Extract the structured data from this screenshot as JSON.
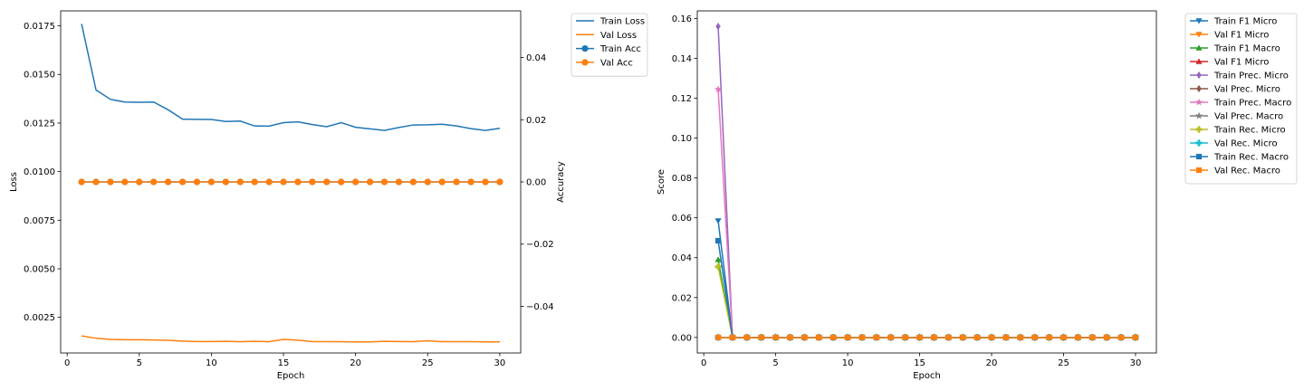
{
  "chart_data": [
    {
      "type": "line",
      "xlabel": "Epoch",
      "ylabel": "Loss",
      "y2label": "Accuracy",
      "xlim": [
        -0.45,
        31.45
      ],
      "ylim": [
        0.00067,
        0.01827
      ],
      "y2lim": [
        -0.055,
        0.055
      ],
      "xticks": [
        0,
        5,
        10,
        15,
        20,
        25,
        30
      ],
      "xtick_labels": [
        "0",
        "5",
        "10",
        "15",
        "20",
        "25",
        "30"
      ],
      "yticks": [
        0.0025,
        0.005,
        0.0075,
        0.01,
        0.0125,
        0.015,
        0.0175
      ],
      "ytick_labels": [
        "0.0025",
        "0.0050",
        "0.0075",
        "0.0100",
        "0.0125",
        "0.0150",
        "0.0175"
      ],
      "y2ticks": [
        -0.04,
        -0.02,
        0,
        0.02,
        0.04
      ],
      "y2tick_labels": [
        "−0.04",
        "−0.02",
        "0.00",
        "0.02",
        "0.04"
      ],
      "grid": false,
      "legend_position": "outside-top-right",
      "x": [
        1,
        2,
        3,
        4,
        5,
        6,
        7,
        8,
        9,
        10,
        11,
        12,
        13,
        14,
        15,
        16,
        17,
        18,
        19,
        20,
        21,
        22,
        23,
        24,
        25,
        26,
        27,
        28,
        29,
        30
      ],
      "series": [
        {
          "name": "Train Loss",
          "axis": "left",
          "color": "#1f77b4",
          "marker": "none",
          "values": [
            0.0176,
            0.0142,
            0.01372,
            0.01358,
            0.01357,
            0.01358,
            0.01318,
            0.0127,
            0.01269,
            0.01268,
            0.01258,
            0.0126,
            0.01235,
            0.01234,
            0.01252,
            0.01256,
            0.01242,
            0.01231,
            0.01252,
            0.01228,
            0.0122,
            0.01212,
            0.01227,
            0.0124,
            0.01241,
            0.01244,
            0.01235,
            0.01221,
            0.01212,
            0.01223
          ]
        },
        {
          "name": "Val Loss",
          "axis": "left",
          "color": "#ff7f0e",
          "marker": "none",
          "values": [
            0.00155,
            0.00143,
            0.00137,
            0.00135,
            0.00135,
            0.00134,
            0.00132,
            0.00128,
            0.00126,
            0.00126,
            0.00127,
            0.00125,
            0.00127,
            0.00125,
            0.00137,
            0.00133,
            0.00126,
            0.00125,
            0.00125,
            0.00124,
            0.00124,
            0.00127,
            0.00126,
            0.00125,
            0.0013,
            0.00125,
            0.00125,
            0.00125,
            0.00124,
            0.00124
          ]
        },
        {
          "name": "Train Acc",
          "axis": "right",
          "color": "#1f77b4",
          "marker": "circle",
          "values": [
            0,
            0,
            0,
            0,
            0,
            0,
            0,
            0,
            0,
            0,
            0,
            0,
            0,
            0,
            0,
            0,
            0,
            0,
            0,
            0,
            0,
            0,
            0,
            0,
            0,
            0,
            0,
            0,
            0,
            0
          ]
        },
        {
          "name": "Val Acc",
          "axis": "right",
          "color": "#ff7f0e",
          "marker": "circle",
          "values": [
            0,
            0,
            0,
            0,
            0,
            0,
            0,
            0,
            0,
            0,
            0,
            0,
            0,
            0,
            0,
            0,
            0,
            0,
            0,
            0,
            0,
            0,
            0,
            0,
            0,
            0,
            0,
            0,
            0,
            0
          ]
        }
      ]
    },
    {
      "type": "line",
      "xlabel": "Epoch",
      "ylabel": "Score",
      "xlim": [
        -0.45,
        31.45
      ],
      "ylim": [
        -0.0078,
        0.1638
      ],
      "xticks": [
        0,
        5,
        10,
        15,
        20,
        25,
        30
      ],
      "xtick_labels": [
        "0",
        "5",
        "10",
        "15",
        "20",
        "25",
        "30"
      ],
      "yticks": [
        0,
        0.02,
        0.04,
        0.06,
        0.08,
        0.1,
        0.12,
        0.14,
        0.16
      ],
      "ytick_labels": [
        "0.00",
        "0.02",
        "0.04",
        "0.06",
        "0.08",
        "0.10",
        "0.12",
        "0.14",
        "0.16"
      ],
      "grid": false,
      "legend_position": "outside-top-right",
      "x": [
        1,
        2,
        3,
        4,
        5,
        6,
        7,
        8,
        9,
        10,
        11,
        12,
        13,
        14,
        15,
        16,
        17,
        18,
        19,
        20,
        21,
        22,
        23,
        24,
        25,
        26,
        27,
        28,
        29,
        30
      ],
      "series": [
        {
          "name": "Train F1 Micro",
          "color": "#1f77b4",
          "marker": "triangle-down",
          "values": [
            0.0585,
            0,
            0,
            0,
            0,
            0,
            0,
            0,
            0,
            0,
            0,
            0,
            0,
            0,
            0,
            0,
            0,
            0,
            0,
            0,
            0,
            0,
            0,
            0,
            0,
            0,
            0,
            0,
            0,
            0
          ]
        },
        {
          "name": "Val F1 Micro",
          "color": "#ff7f0e",
          "marker": "triangle-down",
          "values": [
            0,
            0,
            0,
            0,
            0,
            0,
            0,
            0,
            0,
            0,
            0,
            0,
            0,
            0,
            0,
            0,
            0,
            0,
            0,
            0,
            0,
            0,
            0,
            0,
            0,
            0,
            0,
            0,
            0,
            0
          ]
        },
        {
          "name": "Train F1 Macro",
          "color": "#2ca02c",
          "marker": "triangle-up",
          "values": [
            0.039,
            0,
            0,
            0,
            0,
            0,
            0,
            0,
            0,
            0,
            0,
            0,
            0,
            0,
            0,
            0,
            0,
            0,
            0,
            0,
            0,
            0,
            0,
            0,
            0,
            0,
            0,
            0,
            0,
            0
          ]
        },
        {
          "name": "Val F1 Micro",
          "color": "#d62728",
          "marker": "triangle-up",
          "values": [
            0,
            0,
            0,
            0,
            0,
            0,
            0,
            0,
            0,
            0,
            0,
            0,
            0,
            0,
            0,
            0,
            0,
            0,
            0,
            0,
            0,
            0,
            0,
            0,
            0,
            0,
            0,
            0,
            0,
            0
          ]
        },
        {
          "name": "Train Prec. Micro",
          "color": "#9467bd",
          "marker": "diamond",
          "values": [
            0.156,
            0,
            0,
            0,
            0,
            0,
            0,
            0,
            0,
            0,
            0,
            0,
            0,
            0,
            0,
            0,
            0,
            0,
            0,
            0,
            0,
            0,
            0,
            0,
            0,
            0,
            0,
            0,
            0,
            0
          ]
        },
        {
          "name": "Val Prec. Micro",
          "color": "#8c564b",
          "marker": "diamond",
          "values": [
            0,
            0,
            0,
            0,
            0,
            0,
            0,
            0,
            0,
            0,
            0,
            0,
            0,
            0,
            0,
            0,
            0,
            0,
            0,
            0,
            0,
            0,
            0,
            0,
            0,
            0,
            0,
            0,
            0,
            0
          ]
        },
        {
          "name": "Train Prec. Macro",
          "color": "#e377c2",
          "marker": "star",
          "values": [
            0.1245,
            0,
            0,
            0,
            0,
            0,
            0,
            0,
            0,
            0,
            0,
            0,
            0,
            0,
            0,
            0,
            0,
            0,
            0,
            0,
            0,
            0,
            0,
            0,
            0,
            0,
            0,
            0,
            0,
            0
          ]
        },
        {
          "name": "Val Prec. Macro",
          "color": "#7f7f7f",
          "marker": "star",
          "values": [
            0,
            0,
            0,
            0,
            0,
            0,
            0,
            0,
            0,
            0,
            0,
            0,
            0,
            0,
            0,
            0,
            0,
            0,
            0,
            0,
            0,
            0,
            0,
            0,
            0,
            0,
            0,
            0,
            0,
            0
          ]
        },
        {
          "name": "Train Rec. Micro",
          "color": "#bcbd22",
          "marker": "plus",
          "values": [
            0.0355,
            0,
            0,
            0,
            0,
            0,
            0,
            0,
            0,
            0,
            0,
            0,
            0,
            0,
            0,
            0,
            0,
            0,
            0,
            0,
            0,
            0,
            0,
            0,
            0,
            0,
            0,
            0,
            0,
            0
          ]
        },
        {
          "name": "Val Rec. Micro",
          "color": "#17becf",
          "marker": "plus",
          "values": [
            0,
            0,
            0,
            0,
            0,
            0,
            0,
            0,
            0,
            0,
            0,
            0,
            0,
            0,
            0,
            0,
            0,
            0,
            0,
            0,
            0,
            0,
            0,
            0,
            0,
            0,
            0,
            0,
            0,
            0
          ]
        },
        {
          "name": "Train Rec. Macro",
          "color": "#1f77b4",
          "marker": "square",
          "values": [
            0.0485,
            0,
            0,
            0,
            0,
            0,
            0,
            0,
            0,
            0,
            0,
            0,
            0,
            0,
            0,
            0,
            0,
            0,
            0,
            0,
            0,
            0,
            0,
            0,
            0,
            0,
            0,
            0,
            0,
            0
          ]
        },
        {
          "name": "Val Rec. Macro",
          "color": "#ff7f0e",
          "marker": "square",
          "values": [
            0,
            0,
            0,
            0,
            0,
            0,
            0,
            0,
            0,
            0,
            0,
            0,
            0,
            0,
            0,
            0,
            0,
            0,
            0,
            0,
            0,
            0,
            0,
            0,
            0,
            0,
            0,
            0,
            0,
            0
          ]
        }
      ]
    }
  ]
}
